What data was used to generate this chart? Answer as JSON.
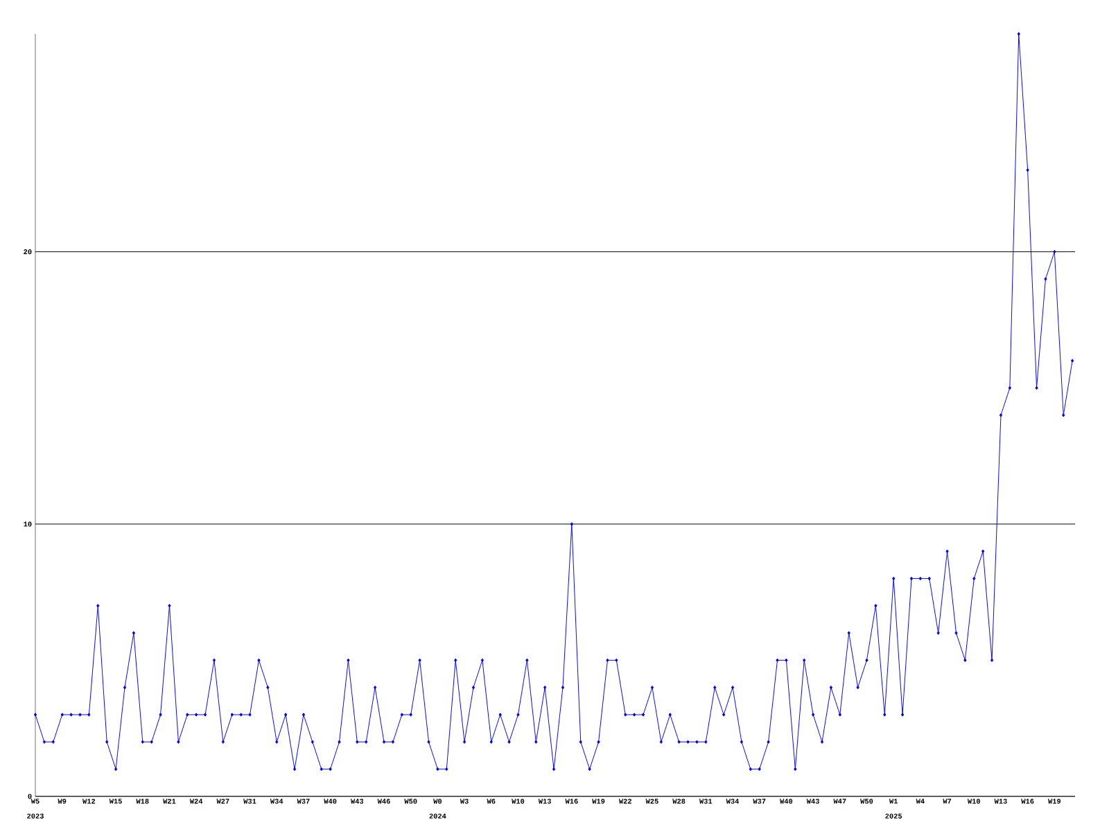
{
  "chart_data": {
    "type": "line",
    "color": "#0000ff",
    "marker": "diamond",
    "line_style": "solid",
    "grid": "y",
    "ylim": [
      0,
      28
    ],
    "yticks": [
      0,
      10,
      20
    ],
    "categories": [
      "W5",
      null,
      null,
      "W9",
      null,
      null,
      "W12",
      null,
      null,
      "W15",
      null,
      null,
      "W18",
      null,
      null,
      "W21",
      null,
      null,
      "W24",
      null,
      null,
      "W27",
      null,
      null,
      "W31",
      null,
      null,
      "W34",
      null,
      null,
      "W37",
      null,
      null,
      "W40",
      null,
      null,
      "W43",
      null,
      null,
      "W46",
      null,
      null,
      "W50",
      null,
      null,
      "W0",
      null,
      null,
      "W3",
      null,
      null,
      "W6",
      null,
      null,
      "W10",
      null,
      null,
      "W13",
      null,
      null,
      "W16",
      null,
      null,
      "W19",
      null,
      null,
      "W22",
      null,
      null,
      "W25",
      null,
      null,
      "W28",
      null,
      null,
      "W31",
      null,
      null,
      "W34",
      null,
      null,
      "W37",
      null,
      null,
      "W40",
      null,
      null,
      "W43",
      null,
      null,
      "W47",
      null,
      null,
      "W50",
      null,
      null,
      "W1",
      null,
      null,
      "W4",
      null,
      null,
      "W7",
      null,
      null,
      "W10",
      null,
      null,
      "W13",
      null,
      null,
      "W16",
      null,
      null,
      "W19",
      null,
      null
    ],
    "values": [
      3,
      2,
      2,
      3,
      3,
      3,
      3,
      7,
      2,
      1,
      4,
      6,
      2,
      2,
      3,
      7,
      2,
      3,
      3,
      3,
      5,
      2,
      3,
      3,
      3,
      5,
      4,
      2,
      3,
      1,
      3,
      2,
      1,
      1,
      2,
      5,
      2,
      2,
      4,
      2,
      2,
      3,
      3,
      5,
      2,
      1,
      1,
      5,
      2,
      4,
      5,
      2,
      3,
      2,
      3,
      5,
      2,
      4,
      1,
      4,
      10,
      2,
      1,
      2,
      5,
      5,
      3,
      3,
      3,
      4,
      2,
      3,
      2,
      2,
      2,
      2,
      4,
      3,
      4,
      2,
      1,
      1,
      2,
      5,
      5,
      1,
      5,
      3,
      2,
      4,
      3,
      6,
      4,
      5,
      7,
      3,
      8,
      3,
      8,
      8,
      8,
      6,
      9,
      6,
      5,
      8,
      9,
      5,
      14,
      15,
      28,
      23,
      15,
      19,
      20,
      14,
      16
    ],
    "annotations": [
      "2023",
      "2024",
      "2025"
    ]
  }
}
